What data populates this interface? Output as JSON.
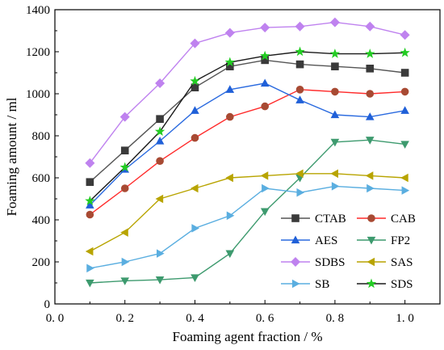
{
  "chart_data": {
    "type": "line",
    "xlabel": "Foaming agent fraction / %",
    "ylabel": "Foaming amount / ml",
    "xlim": [
      0.0,
      1.1
    ],
    "ylim": [
      0,
      1400
    ],
    "grid": false,
    "legend_position": "bottom-right",
    "legend_columns": 2,
    "x_ticks": [
      0.0,
      0.2,
      0.4,
      0.6,
      0.8,
      1.0
    ],
    "x_tick_labels": [
      "0. 0",
      "0. 2",
      "0. 4",
      "0. 6",
      "0. 8",
      "1. 0"
    ],
    "y_ticks": [
      0,
      200,
      400,
      600,
      800,
      1000,
      1200,
      1400
    ],
    "y_tick_labels": [
      "0",
      "200",
      "400",
      "600",
      "800",
      "1000",
      "1200",
      "1400"
    ],
    "x": [
      0.1,
      0.2,
      0.3,
      0.4,
      0.5,
      0.6,
      0.7,
      0.8,
      0.9,
      1.0
    ],
    "series": [
      {
        "name": "CTAB",
        "marker": "square",
        "color": "#555555",
        "marker_color": "#3a3a3a",
        "values": [
          580,
          730,
          880,
          1030,
          1130,
          1160,
          1140,
          1130,
          1120,
          1100
        ]
      },
      {
        "name": "CAB",
        "marker": "circle",
        "color": "#ff2a2a",
        "marker_color": "#a84a33",
        "values": [
          425,
          550,
          680,
          790,
          890,
          940,
          1020,
          1010,
          1000,
          1010
        ]
      },
      {
        "name": "AES",
        "marker": "triangle-up",
        "color": "#2a6adf",
        "marker_color": "#2060d8",
        "values": [
          470,
          640,
          775,
          920,
          1020,
          1050,
          970,
          900,
          890,
          920
        ]
      },
      {
        "name": "FP2",
        "marker": "triangle-down",
        "color": "#3d9a6e",
        "marker_color": "#3d9a6e",
        "values": [
          100,
          110,
          115,
          125,
          240,
          440,
          600,
          770,
          780,
          760
        ]
      },
      {
        "name": "SDBS",
        "marker": "diamond",
        "color": "#bf82ef",
        "marker_color": "#bf82ef",
        "values": [
          670,
          890,
          1050,
          1240,
          1290,
          1315,
          1320,
          1340,
          1320,
          1280
        ]
      },
      {
        "name": "SAS",
        "marker": "triangle-left",
        "color": "#b8a400",
        "marker_color": "#b8a400",
        "values": [
          250,
          340,
          500,
          550,
          600,
          610,
          620,
          620,
          610,
          600
        ]
      },
      {
        "name": "SB",
        "marker": "triangle-right",
        "color": "#5aaee0",
        "marker_color": "#5aaee0",
        "values": [
          170,
          200,
          240,
          360,
          420,
          550,
          530,
          560,
          550,
          540
        ]
      },
      {
        "name": "SDS",
        "marker": "star",
        "color": "#1a1a1a",
        "marker_color": "#22cc22",
        "values": [
          490,
          650,
          820,
          1060,
          1150,
          1180,
          1200,
          1190,
          1190,
          1195
        ]
      }
    ]
  }
}
